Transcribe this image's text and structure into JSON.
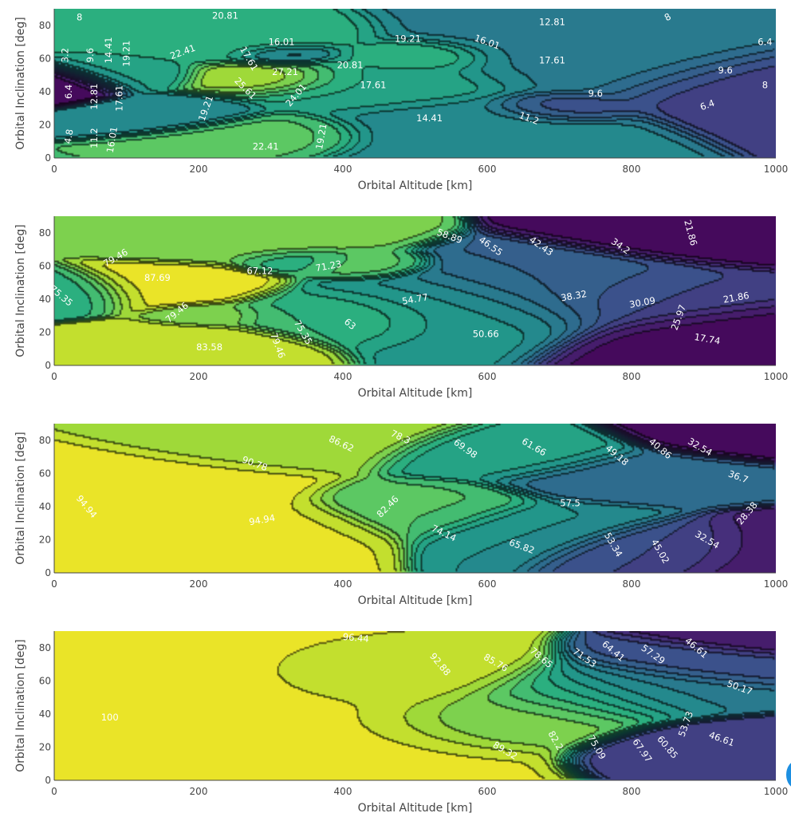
{
  "chart_data": [
    {
      "type": "contour",
      "xlabel": "Orbital Altitude [km]",
      "ylabel": "Orbital Inclination [deg]",
      "xlim": [
        0,
        1000
      ],
      "ylim": [
        0,
        90
      ],
      "x_ticks": [
        "0",
        "200",
        "400",
        "600",
        "800",
        "1000"
      ],
      "y_ticks": [
        "0",
        "20",
        "40",
        "60",
        "80"
      ],
      "colorscale": "viridis",
      "zlim": [
        0,
        30
      ],
      "grid": false,
      "centers": [
        {
          "x": 0,
          "y": 45,
          "z": 0,
          "s": 55
        },
        {
          "x": 100,
          "y": 50,
          "z": 17,
          "s": 60
        },
        {
          "x": 250,
          "y": 70,
          "z": 19,
          "s": 90
        },
        {
          "x": 300,
          "y": 48,
          "z": 28,
          "s": 70
        },
        {
          "x": 320,
          "y": 62,
          "z": 12,
          "s": 45
        },
        {
          "x": 310,
          "y": 15,
          "z": 22,
          "s": 70
        },
        {
          "x": 180,
          "y": 28,
          "z": 14,
          "s": 60
        },
        {
          "x": 430,
          "y": 45,
          "z": 18,
          "s": 120
        },
        {
          "x": 510,
          "y": 60,
          "z": 20,
          "s": 60
        },
        {
          "x": 580,
          "y": 20,
          "z": 14,
          "s": 120
        },
        {
          "x": 700,
          "y": 30,
          "z": 7,
          "s": 60
        },
        {
          "x": 780,
          "y": 60,
          "z": 13,
          "s": 160
        },
        {
          "x": 1000,
          "y": 45,
          "z": 5,
          "s": 140
        }
      ],
      "contour_labels": [
        {
          "x": 35,
          "y": 85,
          "text": "8"
        },
        {
          "x": 237,
          "y": 86,
          "text": "20.81"
        },
        {
          "x": 315,
          "y": 70,
          "text": "16.01"
        },
        {
          "x": 490,
          "y": 72,
          "text": "19.21"
        },
        {
          "x": 600,
          "y": 70,
          "text": "16.01",
          "rot": 20
        },
        {
          "x": 690,
          "y": 82,
          "text": "12.81"
        },
        {
          "x": 850,
          "y": 85,
          "text": "8",
          "rot": -30
        },
        {
          "x": 985,
          "y": 70,
          "text": "6.4"
        },
        {
          "x": 15,
          "y": 62,
          "text": "3.2",
          "rot": -90
        },
        {
          "x": 50,
          "y": 62,
          "text": "9.6",
          "rot": -90
        },
        {
          "x": 75,
          "y": 65,
          "text": "14.41",
          "rot": -90
        },
        {
          "x": 100,
          "y": 63,
          "text": "19.21",
          "rot": -90
        },
        {
          "x": 178,
          "y": 64,
          "text": "22.41",
          "rot": -20
        },
        {
          "x": 270,
          "y": 60,
          "text": "17.61",
          "rot": 60
        },
        {
          "x": 320,
          "y": 52,
          "text": "27.21"
        },
        {
          "x": 410,
          "y": 56,
          "text": "20.81"
        },
        {
          "x": 442,
          "y": 44,
          "text": "17.61"
        },
        {
          "x": 690,
          "y": 59,
          "text": "17.61"
        },
        {
          "x": 930,
          "y": 53,
          "text": "9.6"
        },
        {
          "x": 985,
          "y": 44,
          "text": "8"
        },
        {
          "x": 20,
          "y": 40,
          "text": "6.4",
          "rot": -90
        },
        {
          "x": 55,
          "y": 37,
          "text": "12.81",
          "rot": -90
        },
        {
          "x": 90,
          "y": 36,
          "text": "17.61",
          "rot": -90
        },
        {
          "x": 265,
          "y": 42,
          "text": "25.61",
          "rot": 45
        },
        {
          "x": 335,
          "y": 38,
          "text": "24.01",
          "rot": -50
        },
        {
          "x": 210,
          "y": 30,
          "text": "19.21",
          "rot": -70
        },
        {
          "x": 750,
          "y": 39,
          "text": "9.6"
        },
        {
          "x": 905,
          "y": 32,
          "text": "6.4",
          "rot": -20
        },
        {
          "x": 520,
          "y": 24,
          "text": "14.41"
        },
        {
          "x": 658,
          "y": 24,
          "text": "11.2",
          "rot": 20
        },
        {
          "x": 20,
          "y": 13,
          "text": "4.8",
          "rot": -80
        },
        {
          "x": 55,
          "y": 12,
          "text": "11.2",
          "rot": -90
        },
        {
          "x": 80,
          "y": 11,
          "text": "16.01",
          "rot": -80
        },
        {
          "x": 293,
          "y": 7,
          "text": "22.41"
        },
        {
          "x": 370,
          "y": 13,
          "text": "19.21",
          "rot": -80
        }
      ]
    },
    {
      "type": "contour",
      "xlabel": "Orbital Altitude [km]",
      "ylabel": "Orbital Inclination [deg]",
      "xlim": [
        0,
        1000
      ],
      "ylim": [
        0,
        90
      ],
      "x_ticks": [
        "0",
        "200",
        "400",
        "600",
        "800",
        "1000"
      ],
      "y_ticks": [
        "0",
        "20",
        "40",
        "60",
        "80"
      ],
      "colorscale": "viridis",
      "zlim": [
        12,
        92
      ],
      "grid": false,
      "centers": [
        {
          "x": 0,
          "y": 45,
          "z": 62,
          "s": 70
        },
        {
          "x": 160,
          "y": 48,
          "z": 90,
          "s": 80
        },
        {
          "x": 200,
          "y": 12,
          "z": 86,
          "s": 80
        },
        {
          "x": 220,
          "y": 30,
          "z": 76,
          "s": 45
        },
        {
          "x": 250,
          "y": 78,
          "z": 75,
          "s": 100
        },
        {
          "x": 340,
          "y": 62,
          "z": 64,
          "s": 45
        },
        {
          "x": 420,
          "y": 60,
          "z": 71,
          "s": 50
        },
        {
          "x": 400,
          "y": 30,
          "z": 66,
          "s": 90
        },
        {
          "x": 560,
          "y": 35,
          "z": 54,
          "s": 130
        },
        {
          "x": 700,
          "y": 45,
          "z": 38,
          "s": 130
        },
        {
          "x": 830,
          "y": 40,
          "z": 28,
          "s": 120
        },
        {
          "x": 960,
          "y": 20,
          "z": 14,
          "s": 120
        },
        {
          "x": 980,
          "y": 80,
          "z": 14,
          "s": 120
        }
      ],
      "contour_labels": [
        {
          "x": 548,
          "y": 78,
          "text": "58.89",
          "rot": 20
        },
        {
          "x": 605,
          "y": 72,
          "text": "46.55",
          "rot": 35
        },
        {
          "x": 675,
          "y": 72,
          "text": "42.43",
          "rot": 35
        },
        {
          "x": 785,
          "y": 72,
          "text": "34.2",
          "rot": 35
        },
        {
          "x": 882,
          "y": 80,
          "text": "21.86",
          "rot": 75
        },
        {
          "x": 85,
          "y": 65,
          "text": "79.46",
          "rot": -30
        },
        {
          "x": 285,
          "y": 57,
          "text": "67.12"
        },
        {
          "x": 380,
          "y": 60,
          "text": "71.23",
          "rot": -10
        },
        {
          "x": 143,
          "y": 53,
          "text": "87.69"
        },
        {
          "x": 10,
          "y": 42,
          "text": "75.35",
          "rot": 40
        },
        {
          "x": 500,
          "y": 40,
          "text": "54.77",
          "rot": -10
        },
        {
          "x": 720,
          "y": 42,
          "text": "38.32",
          "rot": -10
        },
        {
          "x": 815,
          "y": 38,
          "text": "30.09",
          "rot": -10
        },
        {
          "x": 945,
          "y": 41,
          "text": "21.86",
          "rot": -10
        },
        {
          "x": 170,
          "y": 32,
          "text": "79.46",
          "rot": -40
        },
        {
          "x": 345,
          "y": 20,
          "text": "75.35",
          "rot": 60
        },
        {
          "x": 410,
          "y": 25,
          "text": "63",
          "rot": 40
        },
        {
          "x": 310,
          "y": 12,
          "text": "79.46",
          "rot": 70
        },
        {
          "x": 215,
          "y": 11,
          "text": "83.58"
        },
        {
          "x": 598,
          "y": 19,
          "text": "50.66"
        },
        {
          "x": 865,
          "y": 29,
          "text": "25.97",
          "rot": -70
        },
        {
          "x": 905,
          "y": 16,
          "text": "17.74",
          "rot": 10
        }
      ]
    },
    {
      "type": "contour",
      "xlabel": "Orbital Altitude [km]",
      "ylabel": "Orbital Inclination [deg]",
      "xlim": [
        0,
        1000
      ],
      "ylim": [
        0,
        90
      ],
      "x_ticks": [
        "0",
        "200",
        "400",
        "600",
        "800",
        "1000"
      ],
      "y_ticks": [
        "0",
        "20",
        "40",
        "60",
        "80"
      ],
      "colorscale": "viridis",
      "zlim": [
        20,
        100
      ],
      "grid": false,
      "centers": [
        {
          "x": 100,
          "y": 45,
          "z": 98,
          "s": 140
        },
        {
          "x": 280,
          "y": 30,
          "z": 96,
          "s": 90
        },
        {
          "x": 330,
          "y": 80,
          "z": 90,
          "s": 110
        },
        {
          "x": 520,
          "y": 40,
          "z": 78,
          "s": 90
        },
        {
          "x": 620,
          "y": 70,
          "z": 66,
          "s": 90
        },
        {
          "x": 700,
          "y": 30,
          "z": 60,
          "s": 90
        },
        {
          "x": 800,
          "y": 55,
          "z": 48,
          "s": 100
        },
        {
          "x": 860,
          "y": 20,
          "z": 38,
          "s": 80
        },
        {
          "x": 1000,
          "y": 85,
          "z": 22,
          "s": 90
        },
        {
          "x": 1000,
          "y": 20,
          "z": 26,
          "s": 90
        }
      ],
      "contour_labels": [
        {
          "x": 398,
          "y": 78,
          "text": "86.62",
          "rot": 25
        },
        {
          "x": 480,
          "y": 82,
          "text": "78.3",
          "rot": 25
        },
        {
          "x": 570,
          "y": 75,
          "text": "69.98",
          "rot": 35
        },
        {
          "x": 665,
          "y": 76,
          "text": "61.66",
          "rot": 30
        },
        {
          "x": 780,
          "y": 71,
          "text": "49.18",
          "rot": 40
        },
        {
          "x": 840,
          "y": 75,
          "text": "40.86",
          "rot": 40
        },
        {
          "x": 895,
          "y": 76,
          "text": "32.54",
          "rot": 30
        },
        {
          "x": 278,
          "y": 66,
          "text": "90.78",
          "rot": 20
        },
        {
          "x": 948,
          "y": 58,
          "text": "36.7",
          "rot": 20
        },
        {
          "x": 45,
          "y": 40,
          "text": "94.94",
          "rot": 50
        },
        {
          "x": 462,
          "y": 40,
          "text": "82.46",
          "rot": -45
        },
        {
          "x": 715,
          "y": 42,
          "text": "57.5"
        },
        {
          "x": 960,
          "y": 36,
          "text": "28.38",
          "rot": -50
        },
        {
          "x": 288,
          "y": 32,
          "text": "94.94",
          "rot": -10
        },
        {
          "x": 540,
          "y": 24,
          "text": "74.14",
          "rot": 25
        },
        {
          "x": 648,
          "y": 16,
          "text": "65.82",
          "rot": 20
        },
        {
          "x": 775,
          "y": 17,
          "text": "53.34",
          "rot": 60
        },
        {
          "x": 840,
          "y": 13,
          "text": "45.02",
          "rot": 60
        },
        {
          "x": 905,
          "y": 20,
          "text": "32.54",
          "rot": 30
        }
      ]
    },
    {
      "type": "contour",
      "xlabel": "Orbital Altitude [km]",
      "ylabel": "Orbital Inclination [deg]",
      "xlim": [
        0,
        1000
      ],
      "ylim": [
        0,
        90
      ],
      "x_ticks": [
        "0",
        "200",
        "400",
        "600",
        "800",
        "1000"
      ],
      "y_ticks": [
        "0",
        "20",
        "40",
        "60",
        "80"
      ],
      "colorscale": "viridis",
      "zlim": [
        30,
        102
      ],
      "grid": false,
      "centers": [
        {
          "x": 60,
          "y": 60,
          "z": 101.5,
          "s": 110
        },
        {
          "x": 250,
          "y": 45,
          "z": 98.5,
          "s": 200
        },
        {
          "x": 480,
          "y": 60,
          "z": 96,
          "s": 110
        },
        {
          "x": 620,
          "y": 40,
          "z": 88,
          "s": 100
        },
        {
          "x": 720,
          "y": 50,
          "z": 78,
          "s": 100
        },
        {
          "x": 820,
          "y": 55,
          "z": 60,
          "s": 100
        },
        {
          "x": 920,
          "y": 70,
          "z": 48,
          "s": 90
        },
        {
          "x": 1000,
          "y": 85,
          "z": 34,
          "s": 80
        },
        {
          "x": 960,
          "y": 20,
          "z": 42,
          "s": 90
        }
      ],
      "contour_labels": [
        {
          "x": 418,
          "y": 86,
          "text": "96.44",
          "rot": 5
        },
        {
          "x": 535,
          "y": 70,
          "text": "92.88",
          "rot": 50
        },
        {
          "x": 612,
          "y": 71,
          "text": "85.76",
          "rot": 30
        },
        {
          "x": 675,
          "y": 74,
          "text": "78.65",
          "rot": 40
        },
        {
          "x": 735,
          "y": 74,
          "text": "71.53",
          "rot": 35
        },
        {
          "x": 775,
          "y": 78,
          "text": "64.41",
          "rot": 40
        },
        {
          "x": 830,
          "y": 76,
          "text": "57.29",
          "rot": 35
        },
        {
          "x": 890,
          "y": 80,
          "text": "46.61",
          "rot": 40
        },
        {
          "x": 950,
          "y": 56,
          "text": "50.17",
          "rot": 20
        },
        {
          "x": 875,
          "y": 34,
          "text": "53.73",
          "rot": -70
        },
        {
          "x": 77,
          "y": 38,
          "text": "100"
        },
        {
          "x": 625,
          "y": 18,
          "text": "89.32",
          "rot": 30
        },
        {
          "x": 695,
          "y": 24,
          "text": "82.2",
          "rot": 60
        },
        {
          "x": 752,
          "y": 20,
          "text": "75.09",
          "rot": 60
        },
        {
          "x": 815,
          "y": 18,
          "text": "67.97",
          "rot": 55
        },
        {
          "x": 850,
          "y": 20,
          "text": "60.85",
          "rot": 50
        },
        {
          "x": 925,
          "y": 25,
          "text": "46.61",
          "rot": 20
        }
      ]
    }
  ]
}
